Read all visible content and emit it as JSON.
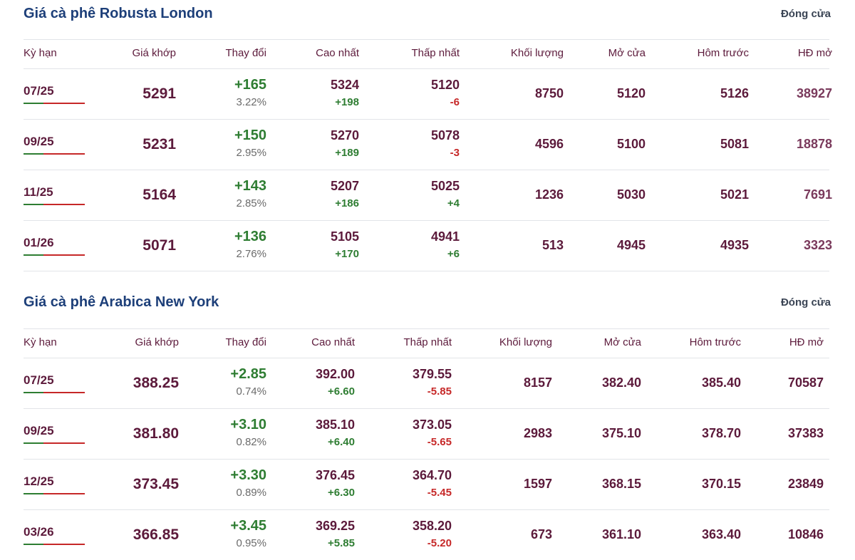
{
  "robusta": {
    "title": "Giá cà phê Robusta London",
    "status": "Đóng cửa",
    "headers": {
      "term": "Kỳ hạn",
      "price": "Giá khớp",
      "change": "Thay đổi",
      "high": "Cao nhất",
      "low": "Thấp nhất",
      "volume": "Khối lượng",
      "open": "Mở cửa",
      "prev": "Hôm trước",
      "oi": "HĐ mở"
    },
    "rows": [
      {
        "term": "07/25",
        "price": "5291",
        "change": "+165",
        "pct": "3.22%",
        "high": "5324",
        "high_chg": "+198",
        "low": "5120",
        "low_chg": "-6",
        "volume": "8750",
        "open": "5120",
        "prev": "5126",
        "oi": "38927"
      },
      {
        "term": "09/25",
        "price": "5231",
        "change": "+150",
        "pct": "2.95%",
        "high": "5270",
        "high_chg": "+189",
        "low": "5078",
        "low_chg": "-3",
        "volume": "4596",
        "open": "5100",
        "prev": "5081",
        "oi": "18878"
      },
      {
        "term": "11/25",
        "price": "5164",
        "change": "+143",
        "pct": "2.85%",
        "high": "5207",
        "high_chg": "+186",
        "low": "5025",
        "low_chg": "+4",
        "volume": "1236",
        "open": "5030",
        "prev": "5021",
        "oi": "7691"
      },
      {
        "term": "01/26",
        "price": "5071",
        "change": "+136",
        "pct": "2.76%",
        "high": "5105",
        "high_chg": "+170",
        "low": "4941",
        "low_chg": "+6",
        "volume": "513",
        "open": "4945",
        "prev": "4935",
        "oi": "3323"
      }
    ]
  },
  "arabica": {
    "title": "Giá cà phê Arabica New York",
    "status": "Đóng cửa",
    "headers": {
      "term": "Kỳ hạn",
      "price": "Giá khớp",
      "change": "Thay đổi",
      "high": "Cao nhất",
      "low": "Thấp nhất",
      "volume": "Khối lượng",
      "open": "Mở cửa",
      "prev": "Hôm trước",
      "oi": "HĐ mở"
    },
    "rows": [
      {
        "term": "07/25",
        "price": "388.25",
        "change": "+2.85",
        "pct": "0.74%",
        "high": "392.00",
        "high_chg": "+6.60",
        "low": "379.55",
        "low_chg": "-5.85",
        "volume": "8157",
        "open": "382.40",
        "prev": "385.40",
        "oi": "70587"
      },
      {
        "term": "09/25",
        "price": "381.80",
        "change": "+3.10",
        "pct": "0.82%",
        "high": "385.10",
        "high_chg": "+6.40",
        "low": "373.05",
        "low_chg": "-5.65",
        "volume": "2983",
        "open": "375.10",
        "prev": "378.70",
        "oi": "37383"
      },
      {
        "term": "12/25",
        "price": "373.45",
        "change": "+3.30",
        "pct": "0.89%",
        "high": "376.45",
        "high_chg": "+6.30",
        "low": "364.70",
        "low_chg": "-5.45",
        "volume": "1597",
        "open": "368.15",
        "prev": "370.15",
        "oi": "23849"
      },
      {
        "term": "03/26",
        "price": "366.85",
        "change": "+3.45",
        "pct": "0.95%",
        "high": "369.25",
        "high_chg": "+5.85",
        "low": "358.20",
        "low_chg": "-5.20",
        "volume": "673",
        "open": "361.10",
        "prev": "363.40",
        "oi": "10846"
      }
    ]
  },
  "colors": {
    "title": "#1d3f79",
    "text": "#5c1a3b",
    "up": "#2e7d32",
    "down": "#c62828",
    "divider": "#e2e4e8"
  }
}
